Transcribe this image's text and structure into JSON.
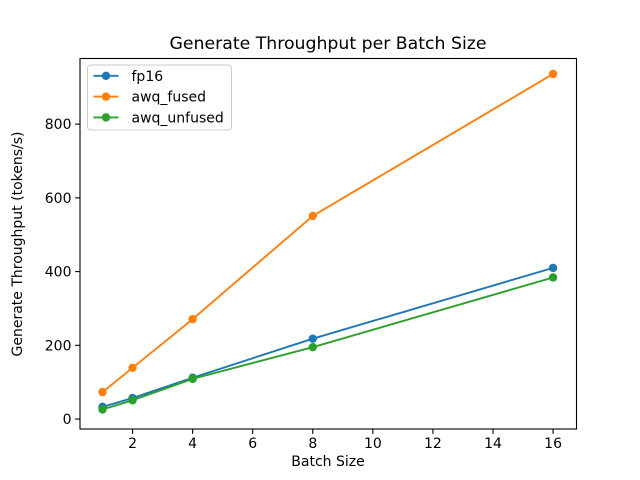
{
  "chart_data": {
    "type": "line",
    "title": "Generate Throughput per Batch Size",
    "xlabel": "Batch Size",
    "ylabel": "Generate Throughput (tokens/s)",
    "x": [
      1,
      2,
      4,
      8,
      16
    ],
    "series": [
      {
        "name": "fp16",
        "color": "#1f77b4",
        "values": [
          33,
          57,
          112,
          218,
          410
        ]
      },
      {
        "name": "awq_fused",
        "color": "#ff7f0e",
        "values": [
          73,
          139,
          271,
          551,
          936
        ]
      },
      {
        "name": "awq_unfused",
        "color": "#2ca02c",
        "values": [
          26,
          51,
          109,
          195,
          384
        ]
      }
    ],
    "xticks": [
      2,
      4,
      6,
      8,
      10,
      12,
      14,
      16
    ],
    "yticks": [
      0,
      200,
      400,
      600,
      800
    ],
    "xlim": [
      0.25,
      16.78
    ],
    "ylim": [
      -27,
      978
    ],
    "grid": false,
    "marker": "circle",
    "legend": {
      "position": "upper left",
      "entries": [
        "fp16",
        "awq_fused",
        "awq_unfused"
      ]
    },
    "background": "#ffffff",
    "line_color_names": {
      "fp16": "blue",
      "awq_fused": "orange",
      "awq_unfused": "green"
    }
  }
}
